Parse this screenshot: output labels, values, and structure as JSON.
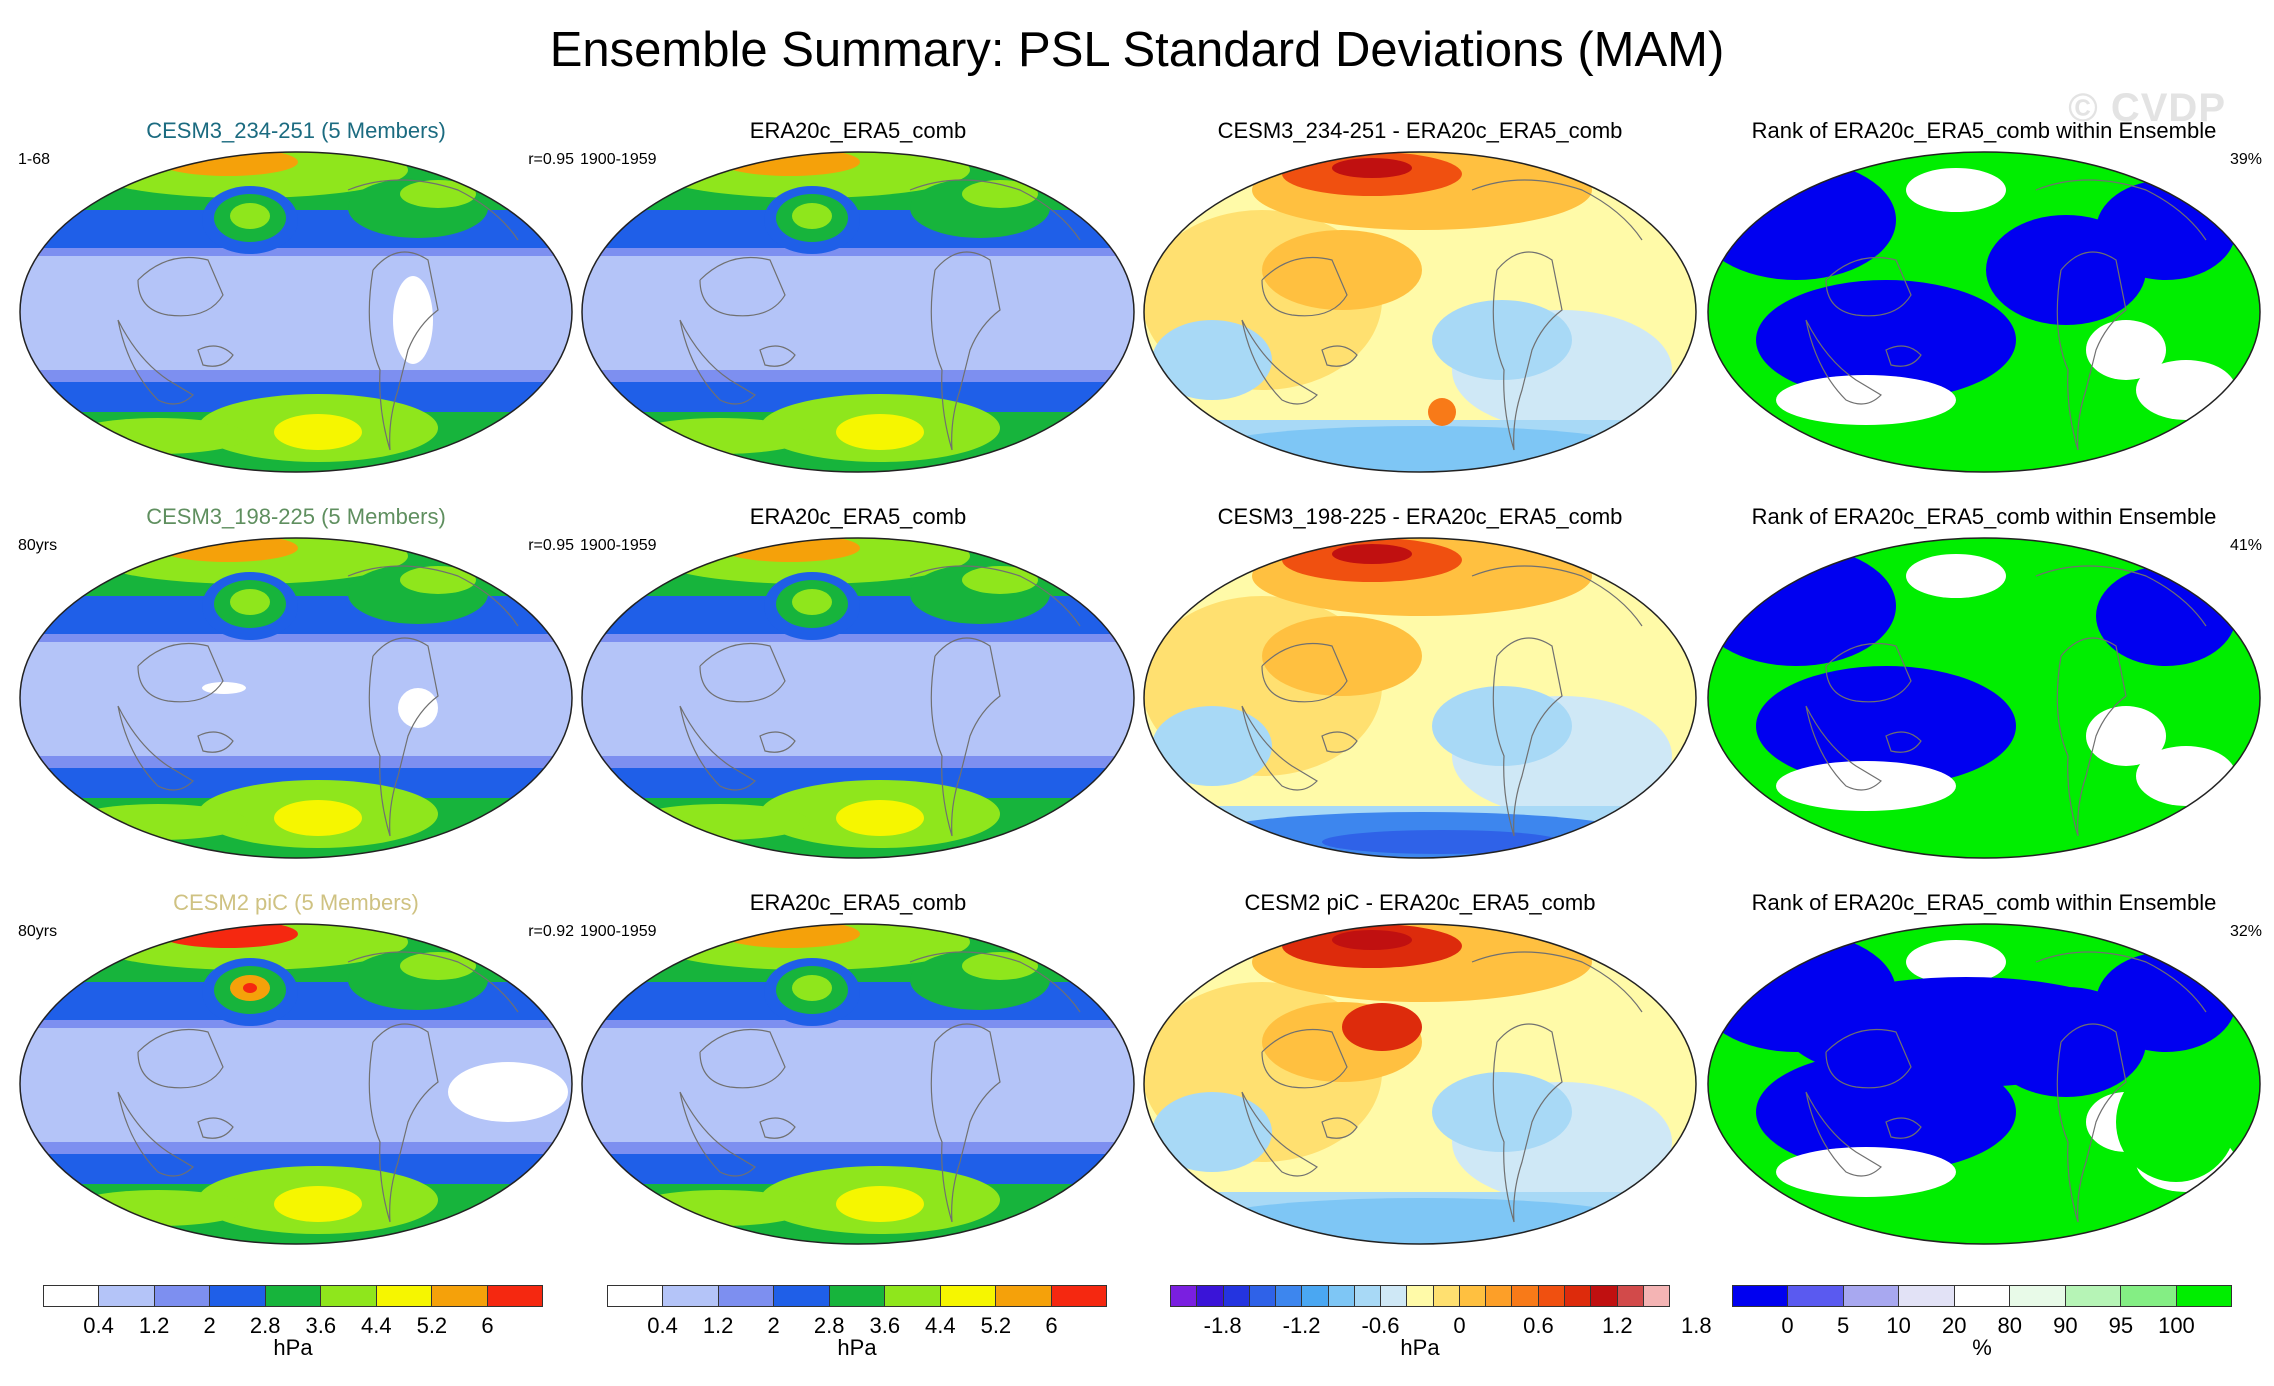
{
  "title": "Ensemble Summary: PSL Standard Deviations (MAM)",
  "watermark": "© CVDP",
  "rows": [
    {
      "ens_title": "CESM3_234-251 (5 Members)",
      "ens_color": "#1b6b80",
      "ens_left": "1-68",
      "ens_right": "r=0.95",
      "obs_title": "ERA20c_ERA5_comb",
      "obs_left": "1900-1959",
      "diff_title": "CESM3_234-251 - ERA20c_ERA5_comb",
      "rank_title": "Rank of ERA20c_ERA5_comb within Ensemble",
      "rank_pct": "39%"
    },
    {
      "ens_title": "CESM3_198-225 (5 Members)",
      "ens_color": "#5f8f5f",
      "ens_left": "80yrs",
      "ens_right": "r=0.95",
      "obs_title": "ERA20c_ERA5_comb",
      "obs_left": "1900-1959",
      "diff_title": "CESM3_198-225 - ERA20c_ERA5_comb",
      "rank_title": "Rank of ERA20c_ERA5_comb within Ensemble",
      "rank_pct": "41%"
    },
    {
      "ens_title": "CESM2 piC (5 Members)",
      "ens_color": "#cfc282",
      "ens_left": "80yrs",
      "ens_right": "r=0.92",
      "obs_title": "ERA20c_ERA5_comb",
      "obs_left": "1900-1959",
      "diff_title": "CESM2 piC - ERA20c_ERA5_comb",
      "rank_title": "Rank of ERA20c_ERA5_comb within Ensemble",
      "rank_pct": "32%"
    }
  ],
  "colorbars": {
    "sd": {
      "colors": [
        "#ffffff",
        "#b4c4f8",
        "#7d8ff0",
        "#1f5fe8",
        "#17b43c",
        "#8fe61c",
        "#f6f600",
        "#f5a10a",
        "#f52810"
      ],
      "ticks": [
        "0.4",
        "1.2",
        "2",
        "2.8",
        "3.6",
        "4.4",
        "5.2",
        "6"
      ],
      "unit": "hPa"
    },
    "diff": {
      "colors": [
        "#7a1fe0",
        "#3a14d8",
        "#2434e0",
        "#2f62e8",
        "#3d86ee",
        "#4aa7f2",
        "#7ec6f5",
        "#a8d9f6",
        "#cfe8f6",
        "#fffaa8",
        "#ffe070",
        "#ffc040",
        "#fd9f28",
        "#f87a18",
        "#f05010",
        "#dd2b0c",
        "#c01010",
        "#d24a4a",
        "#f4b4b4"
      ],
      "ticks": [
        "-1.8",
        "-1.2",
        "-0.6",
        "0",
        "0.6",
        "1.2",
        "1.8"
      ],
      "unit": "hPa"
    },
    "rank": {
      "colors": [
        "#0000f0",
        "#5a5af0",
        "#a8a8f0",
        "#e2e2f6",
        "#ffffff",
        "#e8fae8",
        "#b6f4b6",
        "#84ee84",
        "#00ee00"
      ],
      "ticks": [
        "0",
        "5",
        "10",
        "20",
        "80",
        "90",
        "95",
        "100"
      ],
      "unit": "%"
    }
  }
}
